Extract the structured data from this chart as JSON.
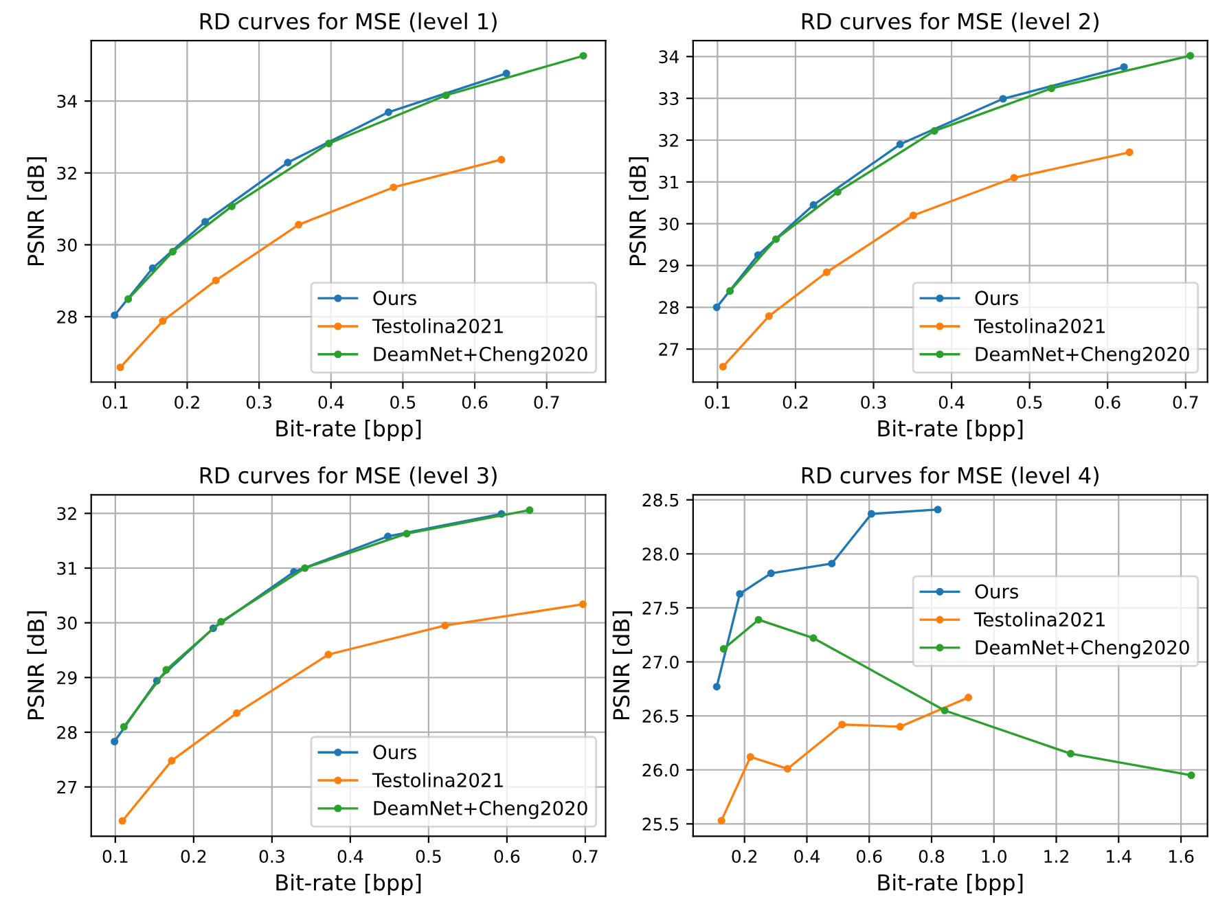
{
  "chart_data": [
    {
      "type": "line",
      "title": "RD curves for MSE (level 1)",
      "xlabel": "Bit-rate [bpp]",
      "ylabel": "PSNR [dB]",
      "xlim": [
        0.0665,
        0.782
      ],
      "ylim": [
        26.18,
        35.68
      ],
      "xticks": [
        0.1,
        0.2,
        0.3,
        0.4,
        0.5,
        0.6,
        0.7
      ],
      "yticks": [
        28,
        30,
        32,
        34
      ],
      "grid": true,
      "legend": "bottom right",
      "marker": "circle",
      "line_style": "solid",
      "series": [
        {
          "name": "Ours",
          "color": "#1f77b4",
          "x": [
            0.099,
            0.152,
            0.225,
            0.34,
            0.48,
            0.644
          ],
          "values": [
            28.04,
            29.35,
            30.64,
            32.29,
            33.69,
            34.77
          ]
        },
        {
          "name": "Testolina2021",
          "color": "#ff7f0e",
          "x": [
            0.107,
            0.166,
            0.24,
            0.355,
            0.487,
            0.637
          ],
          "values": [
            26.59,
            27.88,
            29.01,
            30.56,
            31.6,
            32.37
          ]
        },
        {
          "name": "DeamNet+Cheng2020",
          "color": "#2ca02c",
          "x": [
            0.118,
            0.18,
            0.262,
            0.397,
            0.56,
            0.751
          ],
          "values": [
            28.49,
            29.81,
            31.07,
            32.82,
            34.16,
            35.26
          ]
        }
      ]
    },
    {
      "type": "line",
      "title": "RD curves for MSE (level 2)",
      "xlabel": "Bit-rate [bpp]",
      "ylabel": "PSNR [dB]",
      "xlim": [
        0.0687,
        0.728
      ],
      "ylim": [
        26.21,
        34.38
      ],
      "xticks": [
        0.1,
        0.2,
        0.3,
        0.4,
        0.5,
        0.6,
        0.7
      ],
      "yticks": [
        27,
        28,
        29,
        30,
        31,
        32,
        33,
        34
      ],
      "grid": true,
      "legend": "bottom right",
      "marker": "circle",
      "line_style": "solid",
      "series": [
        {
          "name": "Ours",
          "color": "#1f77b4",
          "x": [
            0.099,
            0.152,
            0.223,
            0.334,
            0.466,
            0.621
          ],
          "values": [
            28.0,
            29.25,
            30.45,
            31.9,
            32.99,
            33.75
          ]
        },
        {
          "name": "Testolina2021",
          "color": "#ff7f0e",
          "x": [
            0.107,
            0.166,
            0.24,
            0.351,
            0.48,
            0.628
          ],
          "values": [
            26.58,
            27.79,
            28.84,
            30.2,
            31.1,
            31.71
          ]
        },
        {
          "name": "DeamNet+Cheng2020",
          "color": "#2ca02c",
          "x": [
            0.116,
            0.175,
            0.254,
            0.378,
            0.528,
            0.706
          ],
          "values": [
            28.39,
            29.63,
            30.76,
            32.22,
            33.24,
            34.02
          ]
        }
      ]
    },
    {
      "type": "line",
      "title": "RD curves for MSE (level 3)",
      "xlabel": "Bit-rate [bpp]",
      "ylabel": "PSNR [dB]",
      "xlim": [
        0.0692,
        0.726
      ],
      "ylim": [
        26.1,
        32.34
      ],
      "xticks": [
        0.1,
        0.2,
        0.3,
        0.4,
        0.5,
        0.6,
        0.7
      ],
      "yticks": [
        27,
        28,
        29,
        30,
        31,
        32
      ],
      "grid": true,
      "legend": "bottom right",
      "marker": "circle",
      "line_style": "solid",
      "series": [
        {
          "name": "Ours",
          "color": "#1f77b4",
          "x": [
            0.099,
            0.153,
            0.225,
            0.328,
            0.448,
            0.593
          ],
          "values": [
            27.83,
            28.94,
            29.9,
            30.93,
            31.58,
            31.99
          ]
        },
        {
          "name": "Testolina2021",
          "color": "#ff7f0e",
          "x": [
            0.109,
            0.172,
            0.255,
            0.372,
            0.521,
            0.697
          ],
          "values": [
            26.38,
            27.48,
            28.35,
            29.42,
            29.95,
            30.34
          ]
        },
        {
          "name": "DeamNet+Cheng2020",
          "color": "#2ca02c",
          "x": [
            0.111,
            0.165,
            0.235,
            0.342,
            0.472,
            0.629
          ],
          "values": [
            28.1,
            29.14,
            30.02,
            31.0,
            31.63,
            32.06
          ]
        }
      ]
    },
    {
      "type": "line",
      "title": "RD curves for MSE (level 4)",
      "xlabel": "Bit-rate [bpp]",
      "ylabel": "PSNR [dB]",
      "xlim": [
        0.035,
        1.685
      ],
      "ylim": [
        25.386,
        28.547
      ],
      "xticks": [
        0.2,
        0.4,
        0.6,
        0.8,
        {
          "value": 1.0,
          "label": "1.0"
        },
        1.2,
        1.4,
        1.6
      ],
      "yticks": [
        25.5,
        {
          "value": 26,
          "label": "26.0"
        },
        26.5,
        {
          "value": 27,
          "label": "27.0"
        },
        27.5,
        {
          "value": 28,
          "label": "28.0"
        },
        28.5
      ],
      "grid": true,
      "legend": "right",
      "marker": "circle",
      "line_style": "solid",
      "series": [
        {
          "name": "Ours",
          "color": "#1f77b4",
          "x": [
            0.111,
            0.185,
            0.285,
            0.48,
            0.607,
            0.82
          ],
          "values": [
            26.77,
            27.63,
            27.82,
            27.91,
            28.37,
            28.41
          ]
        },
        {
          "name": "Testolina2021",
          "color": "#ff7f0e",
          "x": [
            0.126,
            0.219,
            0.338,
            0.513,
            0.699,
            0.918
          ],
          "values": [
            25.53,
            26.12,
            26.01,
            26.42,
            26.4,
            26.67
          ]
        },
        {
          "name": "DeamNet+Cheng2020",
          "color": "#2ca02c",
          "x": [
            0.133,
            0.245,
            0.421,
            0.842,
            1.246,
            1.633
          ],
          "values": [
            27.12,
            27.39,
            27.22,
            26.55,
            26.15,
            25.95
          ]
        }
      ]
    }
  ]
}
